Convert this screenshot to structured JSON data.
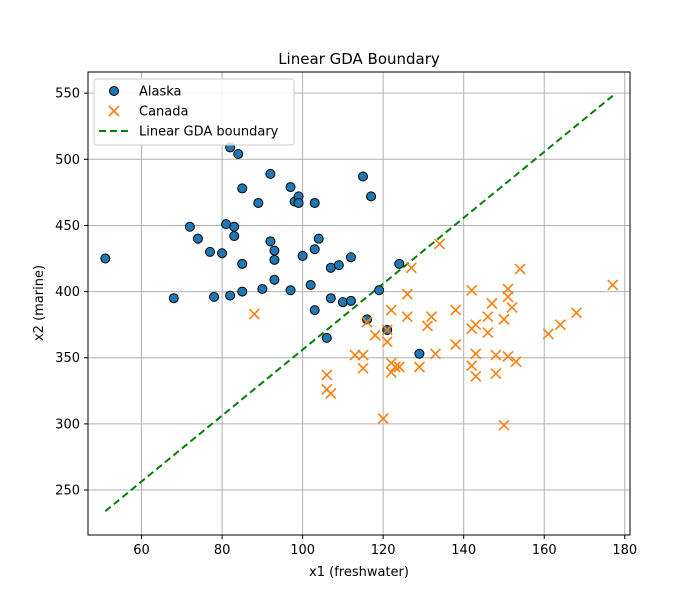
{
  "chart_data": {
    "type": "scatter",
    "title": "Linear GDA Boundary",
    "xlabel": "x1 (freshwater)",
    "ylabel": "x2 (marine)",
    "xlim": [
      46.7,
      181.3
    ],
    "ylim": [
      216,
      566
    ],
    "xticks": [
      60,
      80,
      100,
      120,
      140,
      160,
      180
    ],
    "yticks": [
      250,
      300,
      350,
      400,
      450,
      500,
      550
    ],
    "grid": true,
    "legend_location": "upper left",
    "series": [
      {
        "name": "Alaska",
        "marker": "circle",
        "color": "#1f77b4",
        "edgecolor": "#000000",
        "points": [
          [
            51,
            425
          ],
          [
            68,
            395
          ],
          [
            72,
            449
          ],
          [
            74,
            440
          ],
          [
            77,
            430
          ],
          [
            78,
            396
          ],
          [
            80,
            429
          ],
          [
            81,
            451
          ],
          [
            82,
            509
          ],
          [
            82,
            397
          ],
          [
            83,
            449
          ],
          [
            83,
            442
          ],
          [
            84,
            504
          ],
          [
            85,
            478
          ],
          [
            85,
            421
          ],
          [
            85,
            400
          ],
          [
            89,
            467
          ],
          [
            90,
            402
          ],
          [
            92,
            489
          ],
          [
            92,
            438
          ],
          [
            93,
            431
          ],
          [
            93,
            424
          ],
          [
            93,
            409
          ],
          [
            97,
            479
          ],
          [
            97,
            401
          ],
          [
            98,
            468
          ],
          [
            99,
            472
          ],
          [
            99,
            467
          ],
          [
            100,
            427
          ],
          [
            102,
            405
          ],
          [
            103,
            467
          ],
          [
            103,
            432
          ],
          [
            103,
            386
          ],
          [
            104,
            440
          ],
          [
            106,
            365
          ],
          [
            107,
            418
          ],
          [
            107,
            395
          ],
          [
            109,
            420
          ],
          [
            110,
            392
          ],
          [
            112,
            426
          ],
          [
            112,
            393
          ],
          [
            115,
            487
          ],
          [
            116,
            379
          ],
          [
            117,
            472
          ],
          [
            119,
            401
          ],
          [
            121,
            371
          ],
          [
            124,
            421
          ],
          [
            129,
            353
          ]
        ]
      },
      {
        "name": "Canada",
        "marker": "x",
        "color": "#ff7f0e",
        "points": [
          [
            88,
            383
          ],
          [
            106,
            337
          ],
          [
            106,
            326
          ],
          [
            107,
            323
          ],
          [
            113,
            352
          ],
          [
            115,
            342
          ],
          [
            115,
            352
          ],
          [
            116,
            377
          ],
          [
            118,
            367
          ],
          [
            120,
            304
          ],
          [
            121,
            362
          ],
          [
            121,
            371
          ],
          [
            122,
            346
          ],
          [
            122,
            339
          ],
          [
            122,
            386
          ],
          [
            123,
            343
          ],
          [
            124,
            343
          ],
          [
            126,
            398
          ],
          [
            126,
            381
          ],
          [
            127,
            418
          ],
          [
            129,
            343
          ],
          [
            131,
            374
          ],
          [
            132,
            381
          ],
          [
            133,
            353
          ],
          [
            134,
            436
          ],
          [
            138,
            386
          ],
          [
            138,
            360
          ],
          [
            142,
            401
          ],
          [
            142,
            344
          ],
          [
            142,
            372
          ],
          [
            143,
            375
          ],
          [
            143,
            353
          ],
          [
            143,
            336
          ],
          [
            146,
            381
          ],
          [
            146,
            369
          ],
          [
            147,
            391
          ],
          [
            148,
            352
          ],
          [
            148,
            338
          ],
          [
            150,
            299
          ],
          [
            150,
            379
          ],
          [
            151,
            402
          ],
          [
            151,
            396
          ],
          [
            151,
            351
          ],
          [
            152,
            388
          ],
          [
            153,
            347
          ],
          [
            154,
            417
          ],
          [
            161,
            368
          ],
          [
            164,
            375
          ],
          [
            168,
            384
          ],
          [
            177,
            405
          ]
        ]
      },
      {
        "name": "Linear GDA boundary",
        "type": "line",
        "style": "dashed",
        "color": "#008000",
        "points": [
          [
            51,
            234
          ],
          [
            177,
            548
          ]
        ]
      }
    ]
  }
}
